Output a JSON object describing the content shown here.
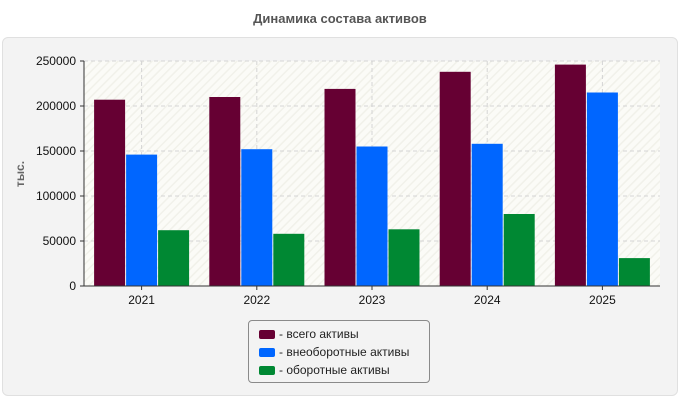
{
  "chart_data": {
    "type": "bar",
    "title": "Динамика состава активов",
    "ylabel": "тыс.",
    "xlabel": "",
    "categories": [
      "2021",
      "2022",
      "2023",
      "2024",
      "2025"
    ],
    "ylim": [
      0,
      250000
    ],
    "yticks": [
      0,
      50000,
      100000,
      150000,
      200000,
      250000
    ],
    "grid": true,
    "legend_position": "bottom",
    "series": [
      {
        "name": "всего активы",
        "color": "#660033",
        "values": [
          207000,
          210000,
          219000,
          238000,
          246000
        ]
      },
      {
        "name": "внеоборотные активы",
        "color": "#0066ff",
        "values": [
          146000,
          152000,
          155000,
          158000,
          215000
        ]
      },
      {
        "name": "оборотные активы",
        "color": "#008833",
        "values": [
          62000,
          58000,
          63000,
          80000,
          31000
        ]
      }
    ]
  },
  "legend_prefix": "- "
}
